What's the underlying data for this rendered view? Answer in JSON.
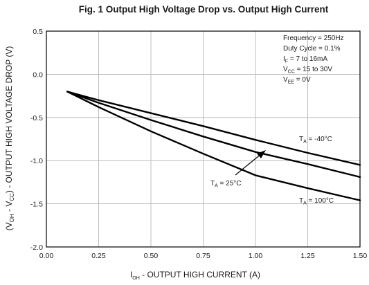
{
  "chart_data": {
    "type": "line",
    "title": "Fig. 1 Output High Voltage Drop vs. Output High Current",
    "xlabel": {
      "main": "I",
      "sub": "OH",
      "rest": " - OUTPUT HIGH CURRENT (A)"
    },
    "ylabel": {
      "p1": "(V",
      "s1": "OH",
      "p2": " - V",
      "s2": "CC",
      "p3": ") - OUTPUT HIGH VOLTAGE DROP (V)"
    },
    "xlim": [
      0,
      1.5
    ],
    "ylim": [
      -2.0,
      0.5
    ],
    "xticks": [
      0,
      0.25,
      0.5,
      0.75,
      1.0,
      1.25,
      1.5
    ],
    "xtick_labels": [
      "0.00",
      "0.25",
      "0.50",
      "0.75",
      "1.00",
      "1.25",
      "1.50"
    ],
    "yticks": [
      0.5,
      0.0,
      -0.5,
      -1.0,
      -1.5,
      -2.0
    ],
    "ytick_labels": [
      "0.5",
      "0.0",
      "-0.5",
      "-1.0",
      "-1.5",
      "-2.0"
    ],
    "grid": true,
    "series": [
      {
        "name": "-40°C",
        "x": [
          0.1,
          0.25,
          0.5,
          0.75,
          1.0,
          1.25,
          1.5
        ],
        "y": [
          -0.2,
          -0.3,
          -0.45,
          -0.6,
          -0.76,
          -0.91,
          -1.05
        ]
      },
      {
        "name": "25°C",
        "x": [
          0.1,
          0.25,
          0.5,
          0.75,
          1.0,
          1.25,
          1.5
        ],
        "y": [
          -0.2,
          -0.33,
          -0.53,
          -0.72,
          -0.9,
          -1.04,
          -1.19
        ]
      },
      {
        "name": "100°C",
        "x": [
          0.1,
          0.25,
          0.5,
          0.75,
          1.0,
          1.25,
          1.5
        ],
        "y": [
          -0.2,
          -0.38,
          -0.66,
          -0.92,
          -1.17,
          -1.32,
          -1.46
        ]
      }
    ],
    "annotations": {
      "conditions": [
        {
          "main": "Frequency = 250Hz",
          "sub": "",
          "rest": ""
        },
        {
          "main": "Duty Cycle = 0.1%",
          "sub": "",
          "rest": ""
        },
        {
          "main": "I",
          "sub": "F",
          "rest": " = 7 to 16mA"
        },
        {
          "main": "V",
          "sub": "CC",
          "rest": " = 15 to 30V"
        },
        {
          "main": "V",
          "sub": "EE",
          "rest": " = 0V"
        }
      ],
      "labels": [
        {
          "main": "T",
          "sub": "A",
          "rest": " = -40°C"
        },
        {
          "main": "T",
          "sub": "A",
          "rest": " = 25°C"
        },
        {
          "main": "T",
          "sub": "A",
          "rest": " = 100°C"
        }
      ]
    }
  }
}
